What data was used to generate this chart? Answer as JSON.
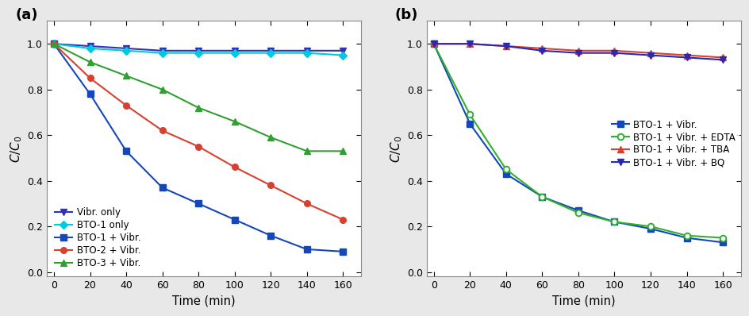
{
  "time": [
    0,
    20,
    40,
    60,
    80,
    100,
    120,
    140,
    160
  ],
  "panel_a": {
    "vibr_only": [
      1.0,
      0.99,
      0.98,
      0.97,
      0.97,
      0.97,
      0.97,
      0.97,
      0.97
    ],
    "bto1_only": [
      1.0,
      0.98,
      0.97,
      0.96,
      0.96,
      0.96,
      0.96,
      0.96,
      0.95
    ],
    "bto1_vibr": [
      1.0,
      0.78,
      0.53,
      0.37,
      0.3,
      0.23,
      0.16,
      0.1,
      0.09
    ],
    "bto2_vibr": [
      1.0,
      0.85,
      0.73,
      0.62,
      0.55,
      0.46,
      0.38,
      0.3,
      0.23
    ],
    "bto3_vibr": [
      1.0,
      0.92,
      0.86,
      0.8,
      0.72,
      0.66,
      0.59,
      0.53,
      0.53
    ]
  },
  "panel_b": {
    "bto1_vibr": [
      1.0,
      0.65,
      0.43,
      0.33,
      0.27,
      0.22,
      0.19,
      0.15,
      0.13
    ],
    "bto1_vibr_edta": [
      1.0,
      0.69,
      0.45,
      0.33,
      0.26,
      0.22,
      0.2,
      0.16,
      0.15
    ],
    "bto1_vibr_tba": [
      1.0,
      1.0,
      0.99,
      0.98,
      0.97,
      0.97,
      0.96,
      0.95,
      0.94
    ],
    "bto1_vibr_bq": [
      1.0,
      1.0,
      0.99,
      0.97,
      0.96,
      0.96,
      0.95,
      0.94,
      0.93
    ]
  },
  "colors_a": {
    "vibr_only": "#3030b8",
    "bto1_only": "#00c8e0",
    "bto1_vibr": "#1448b8",
    "bto2_vibr": "#d84030",
    "bto3_vibr": "#30a030"
  },
  "colors_b": {
    "bto1_vibr": "#1448b8",
    "bto1_vibr_edta": "#30b030",
    "bto1_vibr_tba": "#d84030",
    "bto1_vibr_bq": "#2828b0"
  },
  "labels_a": [
    "Vibr. only",
    "BTO-1 only",
    "BTO-1 + Vibr.",
    "BTO-2 + Vibr.",
    "BTO-3 + Vibr."
  ],
  "labels_b": [
    "BTO-1 + Vibr.",
    "BTO-1 + Vibr. + EDTA",
    "BTO-1 + Vibr. + TBA",
    "BTO-1 + Vibr. + BQ"
  ],
  "xlabel": "Time (min)",
  "ylabel": "$C/C_0$",
  "xlim": [
    -4,
    170
  ],
  "ylim": [
    -0.02,
    1.1
  ],
  "xticks": [
    0,
    20,
    40,
    60,
    80,
    100,
    120,
    140,
    160
  ],
  "yticks": [
    0.0,
    0.2,
    0.4,
    0.6,
    0.8,
    1.0
  ],
  "yticklabels": [
    "0.0",
    "0.2",
    "0.4",
    "0.6",
    "0.8",
    "1.0"
  ],
  "panel_labels": [
    "(a)",
    "(b)"
  ],
  "fig_width": 9.45,
  "fig_height": 3.98,
  "fig_dpi": 100,
  "bg_color": "#e8e8e8"
}
